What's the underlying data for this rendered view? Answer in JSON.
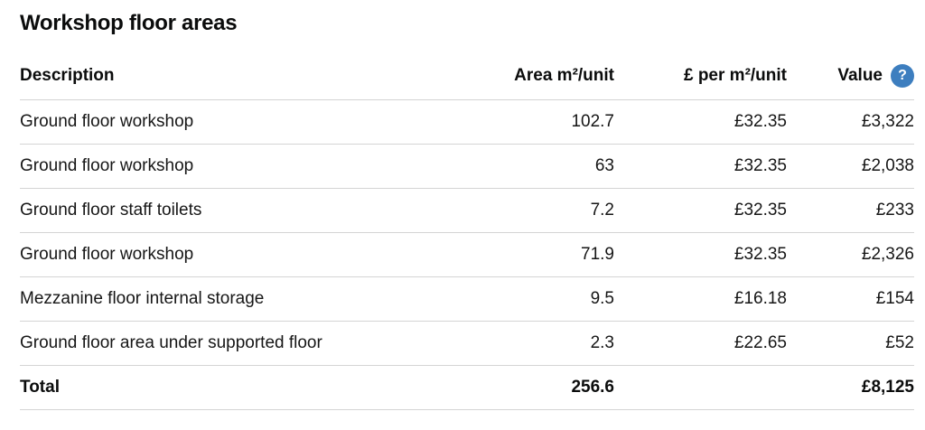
{
  "title": "Workshop floor areas",
  "help": {
    "glyph": "?",
    "color": "#3d7ebf"
  },
  "table": {
    "columns": {
      "description": "Description",
      "area": "Area m²/unit",
      "price": "£ per m²/unit",
      "value": "Value"
    },
    "rows": [
      {
        "description": "Ground floor workshop",
        "area": "102.7",
        "price": "£32.35",
        "value": "£3,322"
      },
      {
        "description": "Ground floor workshop",
        "area": "63",
        "price": "£32.35",
        "value": "£2,038"
      },
      {
        "description": "Ground floor staff toilets",
        "area": "7.2",
        "price": "£32.35",
        "value": "£233"
      },
      {
        "description": "Ground floor workshop",
        "area": "71.9",
        "price": "£32.35",
        "value": "£2,326"
      },
      {
        "description": "Mezzanine floor internal storage",
        "area": "9.5",
        "price": "£16.18",
        "value": "£154"
      },
      {
        "description": "Ground floor area under supported floor",
        "area": "2.3",
        "price": "£22.65",
        "value": "£52"
      }
    ],
    "total": {
      "label": "Total",
      "area": "256.6",
      "price": "",
      "value": "£8,125"
    }
  }
}
